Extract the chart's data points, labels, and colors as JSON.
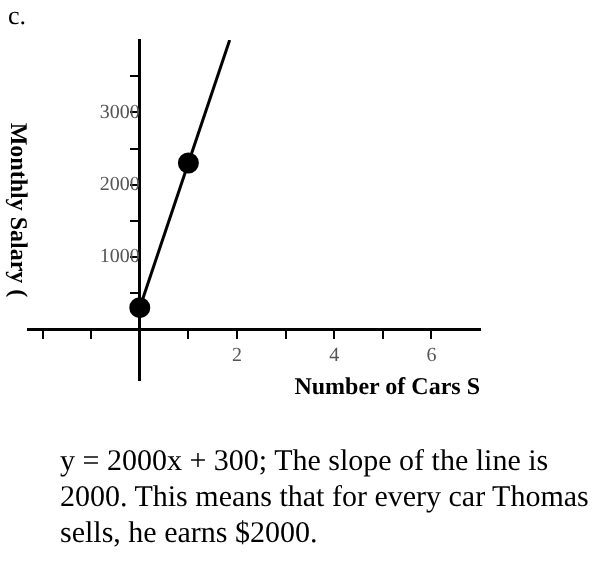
{
  "chart_data": {
    "type": "line",
    "xlabel": "Number of Cars S",
    "ylabel": "Monthly Salary (",
    "annotations": [
      "c.",
      "y = 2000x + 300;  The slope of the line is 2000. This means that for every car Thomas sells, he earns $2000."
    ],
    "series": [
      {
        "type": "line",
        "color": "#000000",
        "x": [
          0,
          1,
          1.85
        ],
        "values": [
          300,
          2300,
          4000
        ],
        "marker": "none"
      },
      {
        "type": "scatter",
        "color": "#000000",
        "x": [
          0,
          1
        ],
        "values": [
          300,
          2300
        ],
        "marker": "circle"
      }
    ],
    "xlim": [
      -2.3,
      7
    ],
    "xticks": [
      {
        "value": -2,
        "label": null
      },
      {
        "value": -1,
        "label": null
      },
      {
        "value": 1,
        "label": null
      },
      2,
      {
        "value": 3,
        "label": null
      },
      4,
      {
        "value": 5,
        "label": null
      },
      6
    ],
    "ylim": [
      -700,
      4000
    ],
    "yticks": [
      {
        "value": 500,
        "label": null
      },
      1000,
      {
        "value": 1500,
        "label": null
      },
      2000,
      {
        "value": 2500,
        "label": null
      },
      3000,
      {
        "value": 3500,
        "label": null
      }
    ],
    "grid": false,
    "legend": false
  }
}
